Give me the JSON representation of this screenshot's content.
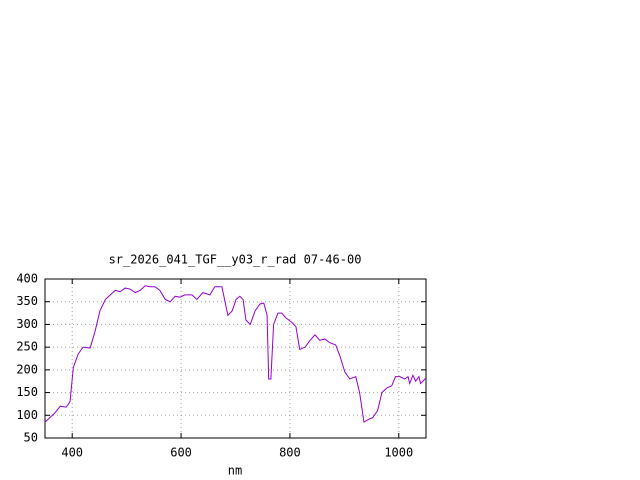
{
  "chart_data": {
    "type": "line",
    "title": "sr_2026_041_TGF__y03_r_rad 07-46-00",
    "x_label": "nm",
    "x": [
      350,
      368,
      378,
      389,
      396,
      402,
      411,
      420,
      433,
      442,
      451,
      461,
      470,
      479,
      488,
      497,
      506,
      516,
      525,
      534,
      543,
      552,
      561,
      571,
      580,
      589,
      598,
      607,
      620,
      629,
      640,
      653,
      662,
      675,
      686,
      694,
      701,
      708,
      714,
      719,
      727,
      736,
      745,
      752,
      758,
      761,
      765,
      770,
      778,
      785,
      792,
      803,
      811,
      818,
      828,
      837,
      846,
      855,
      864,
      873,
      884,
      892,
      901,
      910,
      921,
      928,
      936,
      943,
      952,
      961,
      969,
      978,
      987,
      994,
      1002,
      1011,
      1017,
      1020,
      1026,
      1031,
      1037,
      1040,
      1050
    ],
    "series": [
      {
        "name": "spectrum",
        "color": "#9400d3",
        "values": [
          85,
          105,
          120,
          118,
          130,
          205,
          235,
          250,
          248,
          285,
          330,
          355,
          365,
          375,
          372,
          380,
          378,
          370,
          375,
          385,
          383,
          383,
          375,
          355,
          350,
          362,
          360,
          365,
          365,
          355,
          370,
          365,
          383,
          383,
          320,
          330,
          355,
          362,
          355,
          310,
          300,
          330,
          345,
          347,
          320,
          180,
          180,
          300,
          325,
          325,
          315,
          305,
          295,
          245,
          250,
          265,
          277,
          265,
          268,
          260,
          255,
          230,
          195,
          180,
          185,
          150,
          85,
          90,
          95,
          110,
          150,
          160,
          165,
          185,
          185,
          180,
          185,
          170,
          188,
          175,
          185,
          170,
          182
        ]
      }
    ],
    "xlim": [
      350,
      1050
    ],
    "ylim": [
      50,
      400
    ],
    "xticks": [
      400,
      600,
      800,
      1000
    ],
    "yticks": [
      50,
      100,
      150,
      200,
      250,
      300,
      350,
      400
    ],
    "grid": true
  }
}
